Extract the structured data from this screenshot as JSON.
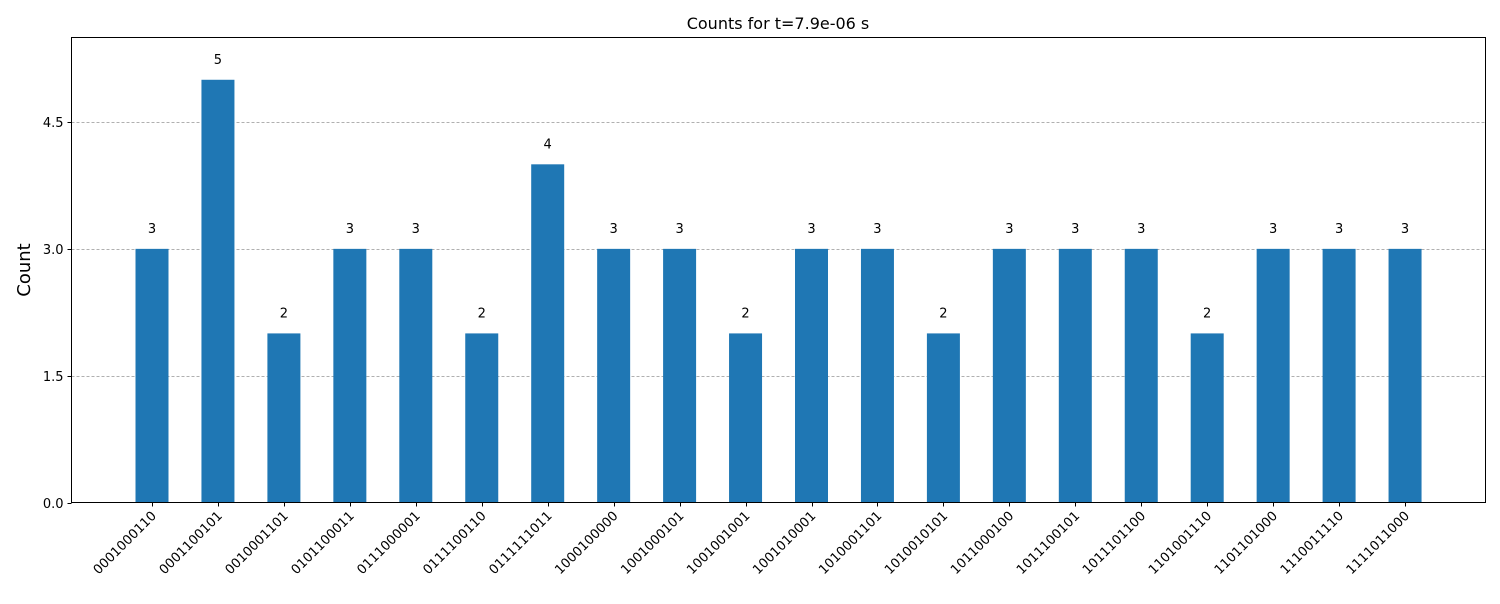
{
  "chart_data": {
    "type": "bar",
    "title": "Counts for t=7.9e-06 s",
    "xlabel": "",
    "ylabel": "Count",
    "ylim": [
      0,
      5.5
    ],
    "yticks": [
      0.0,
      1.5,
      3.0,
      4.5
    ],
    "ytick_labels": [
      "0.0",
      "1.5",
      "3.0",
      "4.5"
    ],
    "grid": "y-dashed",
    "legend": "none",
    "bar_color": "#1f77b4",
    "grid_color": "#b0b0b0",
    "categories": [
      "0001000110",
      "0001100101",
      "0010001101",
      "0101100011",
      "0111000001",
      "0111100110",
      "0111111011",
      "1000100000",
      "1001000101",
      "1001001001",
      "1001010001",
      "1010001101",
      "1010010101",
      "1011000100",
      "1011100101",
      "1011101100",
      "1101001110",
      "1101101000",
      "1110011110",
      "1111011000"
    ],
    "values": [
      3,
      5,
      2,
      3,
      3,
      2,
      4,
      3,
      3,
      2,
      3,
      3,
      2,
      3,
      3,
      3,
      2,
      3,
      3,
      3
    ]
  }
}
